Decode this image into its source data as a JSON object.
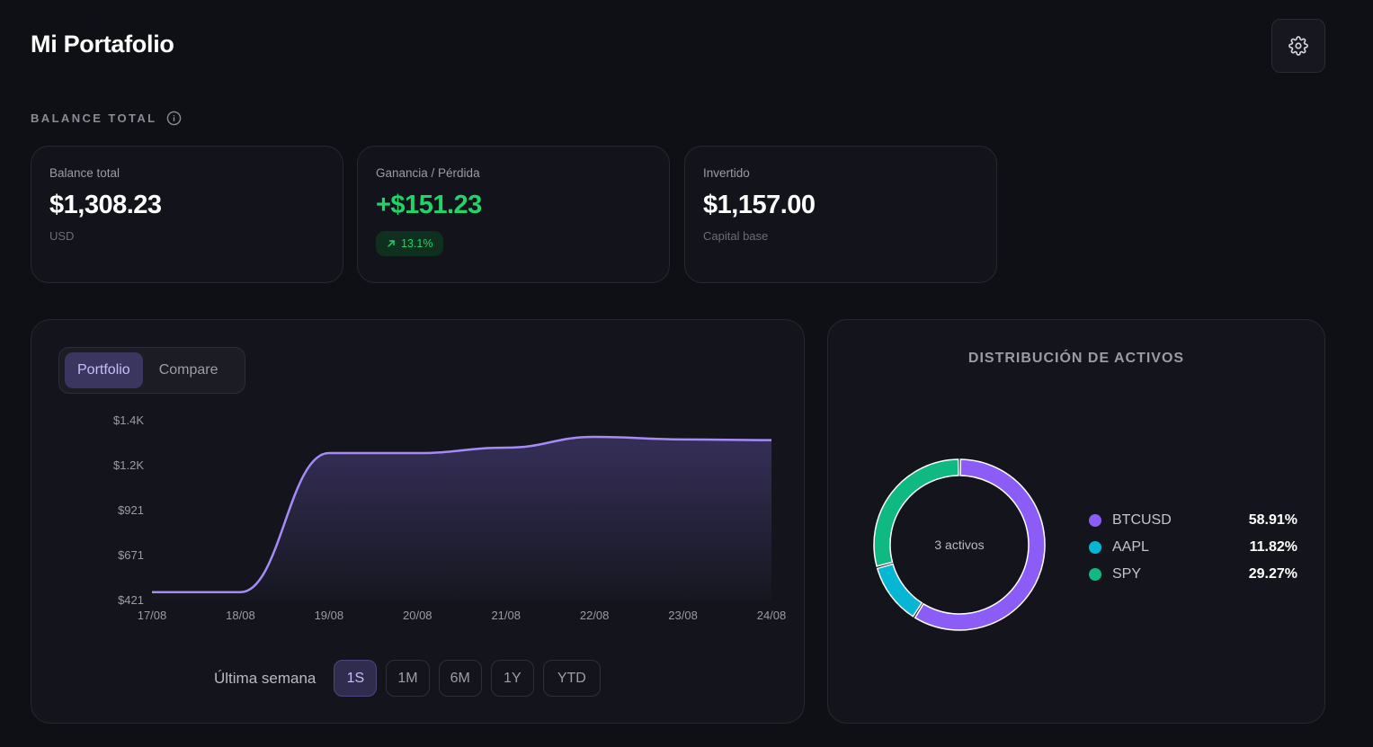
{
  "header": {
    "title": "Mi Portafolio"
  },
  "icons": {
    "settings": "gear-icon",
    "info": "info-icon",
    "trend": "arrow-up-right-icon"
  },
  "section_label": "BALANCE TOTAL",
  "cards": {
    "balance": {
      "label": "Balance total",
      "value": "$1,308.23",
      "sub": "USD"
    },
    "gain": {
      "label": "Ganancia / Pérdida",
      "value": "+$151.23",
      "badge": "13.1%"
    },
    "invested": {
      "label": "Invertido",
      "value": "$1,157.00",
      "sub": "Capital base"
    }
  },
  "chart_tabs": [
    {
      "label": "Portfolio"
    },
    {
      "label": "Compare"
    }
  ],
  "range": {
    "label": "Última semana",
    "buttons": [
      {
        "label": "1S"
      },
      {
        "label": "1M"
      },
      {
        "label": "6M"
      },
      {
        "label": "1Y"
      },
      {
        "label": "YTD"
      }
    ]
  },
  "chart_data": {
    "type": "area",
    "x": [
      "17/08",
      "18/08",
      "19/08",
      "20/08",
      "21/08",
      "22/08",
      "23/08",
      "24/08"
    ],
    "y_ticks": [
      "$1.4K",
      "$1.2K",
      "$921",
      "$671",
      "$421"
    ],
    "ylim": [
      421,
      1420
    ],
    "series": [
      {
        "values": [
          467,
          467,
          1240,
          1240,
          1270,
          1330,
          1316,
          1312
        ]
      }
    ],
    "grid": false,
    "line_color": "#a58bf5"
  },
  "distribution": {
    "title": "DISTRIBUCIÓN DE ACTIVOS",
    "center_label": "3 activos",
    "assets": [
      {
        "name": "BTCUSD",
        "pct": "58.91%",
        "value": 58.91,
        "color": "#8b5cf6"
      },
      {
        "name": "AAPL",
        "pct": "11.82%",
        "value": 11.82,
        "color": "#06b6d4"
      },
      {
        "name": "SPY",
        "pct": "29.27%",
        "value": 29.27,
        "color": "#10b981"
      }
    ]
  }
}
